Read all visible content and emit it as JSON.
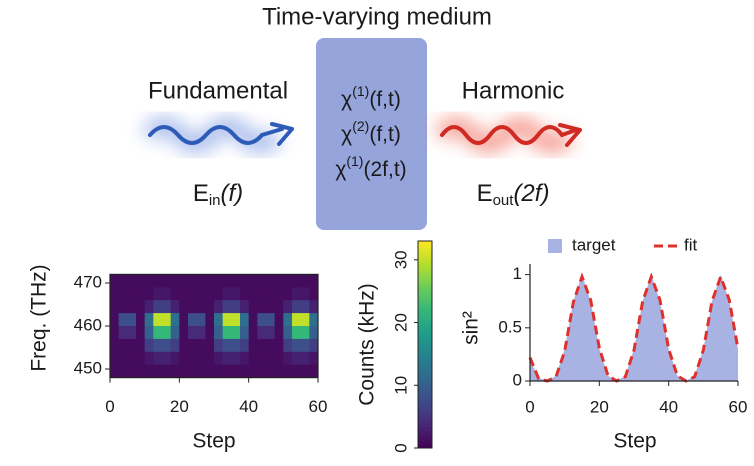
{
  "diagram": {
    "title": "Time-varying medium",
    "input": {
      "label": "Fundamental",
      "field": [
        "E",
        "in",
        "(f)"
      ]
    },
    "output": {
      "label": "Harmonic",
      "field": [
        "E",
        "out",
        "(2f)"
      ]
    },
    "medium": {
      "lines": [
        [
          "χ",
          "(1)",
          "(f,t)"
        ],
        [
          "χ",
          "(2)",
          "(f,t)"
        ],
        [
          "χ",
          "(1)",
          "(2f,t)"
        ]
      ]
    }
  },
  "chart_data": [
    {
      "type": "heatmap",
      "xlabel": "Step",
      "ylabel": "Freq. (THz)",
      "xlim": [
        0,
        60
      ],
      "ylim": [
        448,
        472
      ],
      "xticks": [
        0,
        20,
        40,
        60
      ],
      "yticks": [
        450,
        460,
        470
      ],
      "colormap": "viridis",
      "colorbar_label": "Counts (kHz)",
      "clim": [
        0,
        33
      ],
      "cticks": [
        0,
        10,
        20,
        30
      ],
      "z": [
        [
          1,
          1,
          1,
          1,
          1,
          1,
          1,
          1,
          1,
          1,
          1,
          1,
          1,
          1,
          1,
          1,
          1,
          1,
          1,
          1,
          1,
          1,
          1,
          1
        ],
        [
          1,
          1,
          1,
          1,
          1,
          2,
          2,
          1,
          1,
          1,
          1,
          1,
          1,
          2,
          2,
          1,
          1,
          1,
          1,
          1,
          1,
          2,
          2,
          1
        ],
        [
          1,
          1,
          1,
          1,
          3,
          6,
          6,
          3,
          1,
          1,
          1,
          1,
          3,
          6,
          6,
          3,
          1,
          1,
          1,
          1,
          3,
          6,
          6,
          3
        ],
        [
          1,
          8,
          8,
          1,
          12,
          30,
          30,
          12,
          1,
          8,
          8,
          1,
          12,
          30,
          30,
          12,
          1,
          8,
          8,
          1,
          12,
          30,
          30,
          12
        ],
        [
          1,
          4,
          4,
          1,
          10,
          22,
          22,
          10,
          1,
          4,
          4,
          1,
          10,
          22,
          22,
          10,
          1,
          4,
          4,
          1,
          10,
          22,
          22,
          10
        ],
        [
          1,
          1,
          1,
          1,
          6,
          8,
          8,
          6,
          1,
          1,
          1,
          1,
          6,
          8,
          8,
          6,
          1,
          1,
          1,
          1,
          6,
          8,
          8,
          6
        ],
        [
          1,
          1,
          1,
          1,
          2,
          3,
          3,
          2,
          1,
          1,
          1,
          1,
          2,
          3,
          3,
          2,
          1,
          1,
          1,
          1,
          2,
          3,
          3,
          2
        ],
        [
          1,
          1,
          1,
          1,
          1,
          1,
          1,
          1,
          1,
          1,
          1,
          1,
          1,
          1,
          1,
          1,
          1,
          1,
          1,
          1,
          1,
          1,
          1,
          1
        ]
      ]
    },
    {
      "type": "line",
      "xlabel": "Step",
      "ylabel": "sin²",
      "xlim": [
        0,
        60
      ],
      "ylim": [
        0,
        1.1
      ],
      "xticks": [
        0,
        20,
        40,
        60
      ],
      "yticks": [
        0,
        0.5,
        1
      ],
      "x": [
        0,
        2.5,
        5,
        7.5,
        10,
        12.5,
        15,
        17.5,
        20,
        22.5,
        25,
        27.5,
        30,
        32.5,
        35,
        37.5,
        40,
        42.5,
        45,
        47.5,
        50,
        52.5,
        55,
        57.5,
        60
      ],
      "series": [
        {
          "name": "target",
          "color": "#a9b3e3",
          "style": "area",
          "values": [
            0.2,
            0.03,
            0,
            0.05,
            0.3,
            0.75,
            1,
            0.75,
            0.3,
            0.05,
            0,
            0.05,
            0.3,
            0.75,
            1,
            0.75,
            0.3,
            0.05,
            0,
            0.05,
            0.3,
            0.75,
            1,
            0.75,
            0.3
          ]
        },
        {
          "name": "fit",
          "color": "#e0302c",
          "style": "dashed",
          "values": [
            0.22,
            0.02,
            0,
            0.04,
            0.28,
            0.74,
            0.98,
            0.76,
            0.31,
            0.05,
            0,
            0.04,
            0.29,
            0.75,
            0.98,
            0.76,
            0.3,
            0.05,
            0,
            0.04,
            0.29,
            0.75,
            0.98,
            0.76,
            0.3
          ]
        }
      ]
    }
  ]
}
